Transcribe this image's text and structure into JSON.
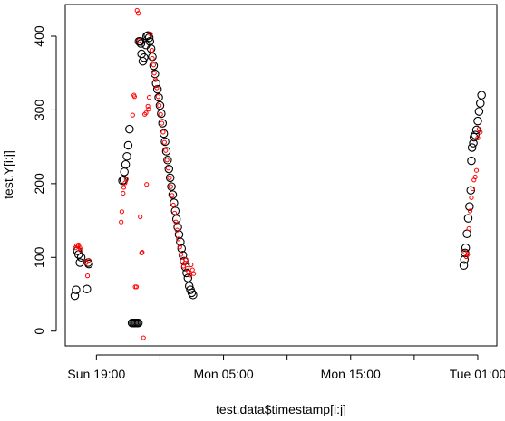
{
  "chart_data": {
    "type": "scatter",
    "title": "",
    "xlabel": "test.data$timestamp[i:j]",
    "ylabel": "test.Y[i:j]",
    "x_unit": "hours",
    "x_tick_labels": [
      {
        "x": 19,
        "label": "Sun 19:00"
      },
      {
        "x": 24,
        "label": ""
      },
      {
        "x": 29,
        "label": "Mon 05:00"
      },
      {
        "x": 34,
        "label": ""
      },
      {
        "x": 39,
        "label": "Mon 15:00"
      },
      {
        "x": 44,
        "label": ""
      },
      {
        "x": 49,
        "label": "Tue 01:00"
      }
    ],
    "xlim": [
      16.55,
      50.5
    ],
    "ylim": [
      -20,
      443
    ],
    "y_ticks": [
      0,
      100,
      200,
      300,
      400
    ],
    "grid": false,
    "legend": "none",
    "series": [
      {
        "marker": "open-circle",
        "color": "#000000",
        "points": [
          [
            17.3,
            48
          ],
          [
            17.4,
            56
          ],
          [
            17.5,
            109
          ],
          [
            17.6,
            104
          ],
          [
            17.7,
            93
          ],
          [
            17.8,
            100
          ],
          [
            18.25,
            57
          ],
          [
            18.35,
            93
          ],
          [
            18.4,
            91
          ],
          [
            21.05,
            204
          ],
          [
            21.15,
            205
          ],
          [
            21.2,
            216
          ],
          [
            21.3,
            226
          ],
          [
            21.4,
            237
          ],
          [
            21.5,
            252
          ],
          [
            21.6,
            274
          ],
          [
            21.8,
            11
          ],
          [
            21.9,
            11
          ],
          [
            22.0,
            11
          ],
          [
            22.1,
            11
          ],
          [
            22.2,
            11
          ],
          [
            22.3,
            11
          ],
          [
            22.35,
            393
          ],
          [
            22.45,
            393
          ],
          [
            22.5,
            390
          ],
          [
            22.55,
            376
          ],
          [
            22.65,
            366
          ],
          [
            22.75,
            371
          ],
          [
            22.9,
            388
          ],
          [
            22.95,
            400
          ],
          [
            23.05,
            401
          ],
          [
            23.15,
            398
          ],
          [
            23.2,
            393
          ],
          [
            23.3,
            383
          ],
          [
            23.4,
            372
          ],
          [
            23.5,
            360
          ],
          [
            23.6,
            349
          ],
          [
            23.7,
            336
          ],
          [
            23.8,
            328
          ],
          [
            23.9,
            317
          ],
          [
            24.0,
            306
          ],
          [
            24.1,
            295
          ],
          [
            24.2,
            282
          ],
          [
            24.3,
            268
          ],
          [
            24.4,
            257
          ],
          [
            24.5,
            244
          ],
          [
            24.6,
            232
          ],
          [
            24.7,
            220
          ],
          [
            24.8,
            208
          ],
          [
            24.9,
            196
          ],
          [
            25.0,
            185
          ],
          [
            25.1,
            174
          ],
          [
            25.2,
            163
          ],
          [
            25.3,
            152
          ],
          [
            25.4,
            141
          ],
          [
            25.5,
            131
          ],
          [
            25.6,
            121
          ],
          [
            25.7,
            112
          ],
          [
            25.8,
            103
          ],
          [
            25.9,
            95
          ],
          [
            26.0,
            87
          ],
          [
            26.1,
            79
          ],
          [
            26.2,
            72
          ],
          [
            26.3,
            61
          ],
          [
            26.4,
            56
          ],
          [
            26.5,
            52
          ],
          [
            26.6,
            49
          ],
          [
            47.9,
            89
          ],
          [
            47.95,
            97
          ],
          [
            48.0,
            106
          ],
          [
            48.05,
            113
          ],
          [
            48.15,
            132
          ],
          [
            48.25,
            153
          ],
          [
            48.35,
            169
          ],
          [
            48.45,
            191
          ],
          [
            48.5,
            231
          ],
          [
            48.55,
            249
          ],
          [
            48.65,
            255
          ],
          [
            48.7,
            263
          ],
          [
            48.8,
            266
          ],
          [
            48.9,
            273
          ],
          [
            49.0,
            285
          ],
          [
            49.1,
            298
          ],
          [
            49.2,
            309
          ],
          [
            49.3,
            320
          ]
        ]
      },
      {
        "marker": "small-open-circle",
        "color": "#ff0000",
        "points": [
          [
            17.35,
            113
          ],
          [
            17.45,
            116
          ],
          [
            17.55,
            115
          ],
          [
            17.6,
            117
          ],
          [
            17.7,
            113
          ],
          [
            17.75,
            110
          ],
          [
            18.2,
            93
          ],
          [
            18.3,
            75
          ],
          [
            18.4,
            96
          ],
          [
            20.95,
            148
          ],
          [
            21.0,
            162
          ],
          [
            21.1,
            187
          ],
          [
            21.15,
            195
          ],
          [
            21.25,
            201
          ],
          [
            21.35,
            206
          ],
          [
            21.85,
            293
          ],
          [
            21.95,
            320
          ],
          [
            22.0,
            318
          ],
          [
            22.05,
            60
          ],
          [
            22.15,
            60
          ],
          [
            22.2,
            435
          ],
          [
            22.3,
            431
          ],
          [
            22.35,
            394
          ],
          [
            22.45,
            155
          ],
          [
            22.55,
            106
          ],
          [
            22.6,
            107
          ],
          [
            22.7,
            -9
          ],
          [
            22.8,
            294
          ],
          [
            22.9,
            296
          ],
          [
            22.95,
            199
          ],
          [
            23.05,
            305
          ],
          [
            23.1,
            301
          ],
          [
            23.15,
            317
          ],
          [
            23.25,
            403
          ],
          [
            23.35,
            381
          ],
          [
            23.4,
            370
          ],
          [
            23.5,
            361
          ],
          [
            23.55,
            350
          ],
          [
            23.65,
            341
          ],
          [
            23.75,
            330
          ],
          [
            23.85,
            318
          ],
          [
            23.95,
            306
          ],
          [
            24.05,
            294
          ],
          [
            24.15,
            282
          ],
          [
            24.25,
            270
          ],
          [
            24.35,
            256
          ],
          [
            24.45,
            245
          ],
          [
            24.55,
            232
          ],
          [
            24.65,
            221
          ],
          [
            24.75,
            208
          ],
          [
            24.85,
            196
          ],
          [
            24.95,
            184
          ],
          [
            25.05,
            171
          ],
          [
            25.15,
            160
          ],
          [
            25.25,
            148
          ],
          [
            25.35,
            137
          ],
          [
            25.45,
            125
          ],
          [
            25.55,
            114
          ],
          [
            25.65,
            104
          ],
          [
            25.75,
            95
          ],
          [
            25.85,
            88
          ],
          [
            25.95,
            92
          ],
          [
            26.05,
            97
          ],
          [
            26.15,
            85
          ],
          [
            26.25,
            80
          ],
          [
            26.35,
            76
          ],
          [
            26.45,
            90
          ],
          [
            26.55,
            83
          ],
          [
            26.65,
            78
          ],
          [
            48.0,
            107
          ],
          [
            48.1,
            101
          ],
          [
            48.2,
            104
          ],
          [
            48.3,
            139
          ],
          [
            48.4,
            163
          ],
          [
            48.5,
            181
          ],
          [
            48.6,
            193
          ],
          [
            48.7,
            205
          ],
          [
            48.8,
            209
          ],
          [
            48.9,
            218
          ],
          [
            49.0,
            262
          ],
          [
            49.1,
            274
          ],
          [
            49.2,
            270
          ]
        ]
      }
    ]
  }
}
